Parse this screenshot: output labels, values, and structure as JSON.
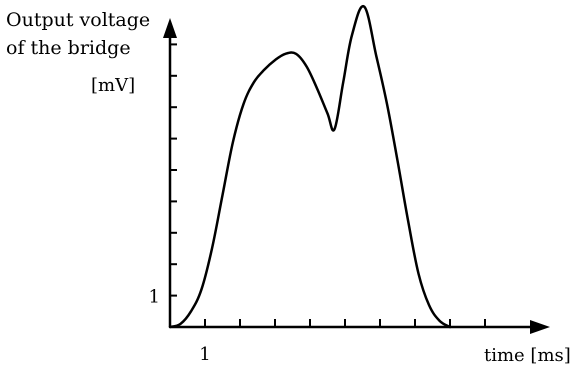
{
  "chart_data": {
    "type": "line",
    "ylabel_lines": [
      "Output voltage",
      "of the bridge",
      "[mV]"
    ],
    "xlabel": "time [ms]",
    "x_tick_labels": [
      {
        "value": 1,
        "label": "1"
      }
    ],
    "y_tick_labels": [
      {
        "value": 1,
        "label": "1"
      }
    ],
    "xlim": [
      0,
      10.7
    ],
    "ylim": [
      0,
      10.3
    ],
    "x_tick_count": 9,
    "y_tick_count": 9,
    "grid": false,
    "series": [
      {
        "color": "#000000",
        "points": [
          {
            "x": 0.0,
            "y": 0.0
          },
          {
            "x": 0.3,
            "y": 0.1
          },
          {
            "x": 0.6,
            "y": 0.5
          },
          {
            "x": 0.9,
            "y": 1.2
          },
          {
            "x": 1.2,
            "y": 2.5
          },
          {
            "x": 1.5,
            "y": 4.2
          },
          {
            "x": 1.8,
            "y": 5.9
          },
          {
            "x": 2.1,
            "y": 7.1
          },
          {
            "x": 2.4,
            "y": 7.8
          },
          {
            "x": 2.7,
            "y": 8.2
          },
          {
            "x": 3.0,
            "y": 8.5
          },
          {
            "x": 3.3,
            "y": 8.7
          },
          {
            "x": 3.6,
            "y": 8.7
          },
          {
            "x": 3.9,
            "y": 8.3
          },
          {
            "x": 4.2,
            "y": 7.6
          },
          {
            "x": 4.5,
            "y": 6.8
          },
          {
            "x": 4.7,
            "y": 6.3
          },
          {
            "x": 4.95,
            "y": 7.8
          },
          {
            "x": 5.2,
            "y": 9.3
          },
          {
            "x": 5.55,
            "y": 10.2
          },
          {
            "x": 5.9,
            "y": 8.6
          },
          {
            "x": 6.2,
            "y": 7.1
          },
          {
            "x": 6.5,
            "y": 5.3
          },
          {
            "x": 6.8,
            "y": 3.4
          },
          {
            "x": 7.1,
            "y": 1.7
          },
          {
            "x": 7.4,
            "y": 0.7
          },
          {
            "x": 7.7,
            "y": 0.2
          },
          {
            "x": 8.0,
            "y": 0.0
          }
        ]
      }
    ]
  }
}
